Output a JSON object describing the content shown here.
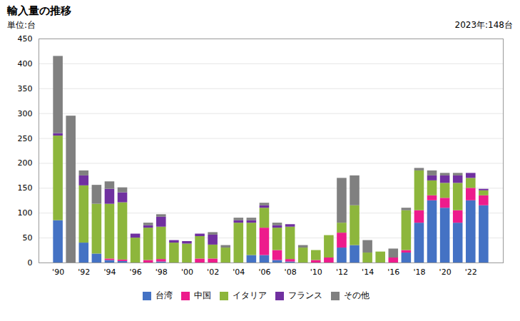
{
  "chart_data": {
    "type": "bar",
    "stacked": true,
    "title": "輸入量の推移",
    "ylabel": "単位:台",
    "annotation": "2023年:148台",
    "x": [
      1990,
      1991,
      1992,
      1993,
      1994,
      1995,
      1996,
      1997,
      1998,
      1999,
      2000,
      2001,
      2002,
      2003,
      2004,
      2005,
      2006,
      2007,
      2008,
      2009,
      2010,
      2011,
      2012,
      2013,
      2014,
      2015,
      2016,
      2017,
      2018,
      2019,
      2020,
      2021,
      2022,
      2023
    ],
    "series": [
      {
        "name": "台湾",
        "color": "#4472C4",
        "values": [
          85,
          0,
          40,
          18,
          5,
          3,
          0,
          0,
          2,
          0,
          0,
          0,
          0,
          0,
          0,
          15,
          15,
          5,
          2,
          0,
          0,
          0,
          30,
          35,
          0,
          0,
          0,
          20,
          80,
          125,
          110,
          80,
          125,
          115
        ]
      },
      {
        "name": "中国",
        "color": "#ED1C8C",
        "values": [
          0,
          0,
          0,
          0,
          3,
          3,
          0,
          5,
          5,
          0,
          0,
          8,
          8,
          0,
          0,
          0,
          55,
          20,
          5,
          0,
          5,
          10,
          30,
          0,
          0,
          0,
          10,
          5,
          25,
          10,
          20,
          25,
          25,
          20
        ]
      },
      {
        "name": "イタリア",
        "color": "#8DB63C",
        "values": [
          170,
          0,
          115,
          100,
          110,
          115,
          50,
          65,
          65,
          40,
          38,
          45,
          28,
          30,
          80,
          65,
          40,
          45,
          65,
          30,
          20,
          45,
          20,
          80,
          20,
          22,
          0,
          80,
          80,
          30,
          30,
          55,
          20,
          10
        ]
      },
      {
        "name": "フランス",
        "color": "#7030A0",
        "values": [
          5,
          0,
          20,
          0,
          30,
          20,
          8,
          5,
          20,
          5,
          5,
          5,
          20,
          0,
          5,
          5,
          5,
          5,
          5,
          0,
          0,
          0,
          0,
          0,
          0,
          0,
          0,
          0,
          0,
          10,
          15,
          15,
          10,
          3
        ]
      },
      {
        "name": "その他",
        "color": "#808080",
        "values": [
          155,
          295,
          10,
          38,
          15,
          10,
          0,
          5,
          5,
          0,
          0,
          0,
          5,
          5,
          5,
          5,
          5,
          5,
          0,
          5,
          0,
          0,
          90,
          60,
          25,
          0,
          18,
          5,
          5,
          10,
          5,
          5,
          0,
          0
        ]
      }
    ],
    "xlim": [
      1988.5,
      2024.5
    ],
    "xticks": [
      {
        "value": 1990,
        "label": "'90"
      },
      {
        "value": 1992,
        "label": "'92"
      },
      {
        "value": 1994,
        "label": "'94"
      },
      {
        "value": 1996,
        "label": "'96"
      },
      {
        "value": 1998,
        "label": "'98"
      },
      {
        "value": 2000,
        "label": "'00"
      },
      {
        "value": 2002,
        "label": "'02"
      },
      {
        "value": 2004,
        "label": "'04"
      },
      {
        "value": 2006,
        "label": "'06"
      },
      {
        "value": 2008,
        "label": "'08"
      },
      {
        "value": 2010,
        "label": "'10"
      },
      {
        "value": 2012,
        "label": "'12"
      },
      {
        "value": 2014,
        "label": "'14"
      },
      {
        "value": 2016,
        "label": "'16"
      },
      {
        "value": 2018,
        "label": "'18"
      },
      {
        "value": 2020,
        "label": "'20"
      },
      {
        "value": 2022,
        "label": "'22"
      }
    ],
    "ylim": [
      0,
      450
    ],
    "yticks": [
      0,
      50,
      100,
      150,
      200,
      250,
      300,
      350,
      400,
      450
    ],
    "grid": true,
    "legend": "bottom"
  }
}
